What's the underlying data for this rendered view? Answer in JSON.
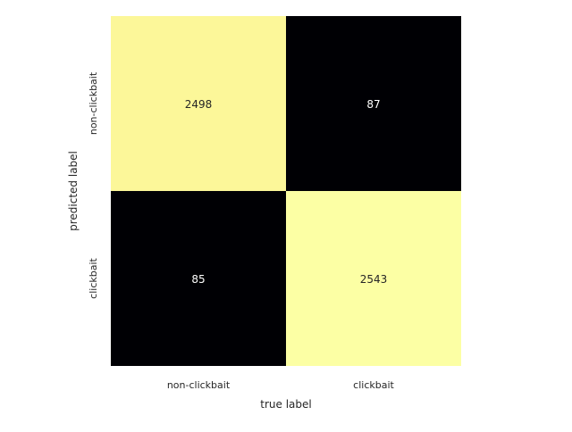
{
  "chart_data": {
    "type": "heatmap",
    "title": "",
    "xlabel": "true label",
    "ylabel": "predicted label",
    "x_categories": [
      "non-clickbait",
      "clickbait"
    ],
    "y_categories": [
      "non-clickbait",
      "clickbait"
    ],
    "values": [
      [
        2498,
        87
      ],
      [
        85,
        2543
      ]
    ],
    "colorbar": false,
    "grid": false,
    "colormap": "inferno",
    "colors": {
      "high": "#f6f99a",
      "high_alt": "#fcffa4",
      "low": "#000004",
      "text_on_high": "#262626",
      "text_on_low": "#ffffff"
    }
  }
}
